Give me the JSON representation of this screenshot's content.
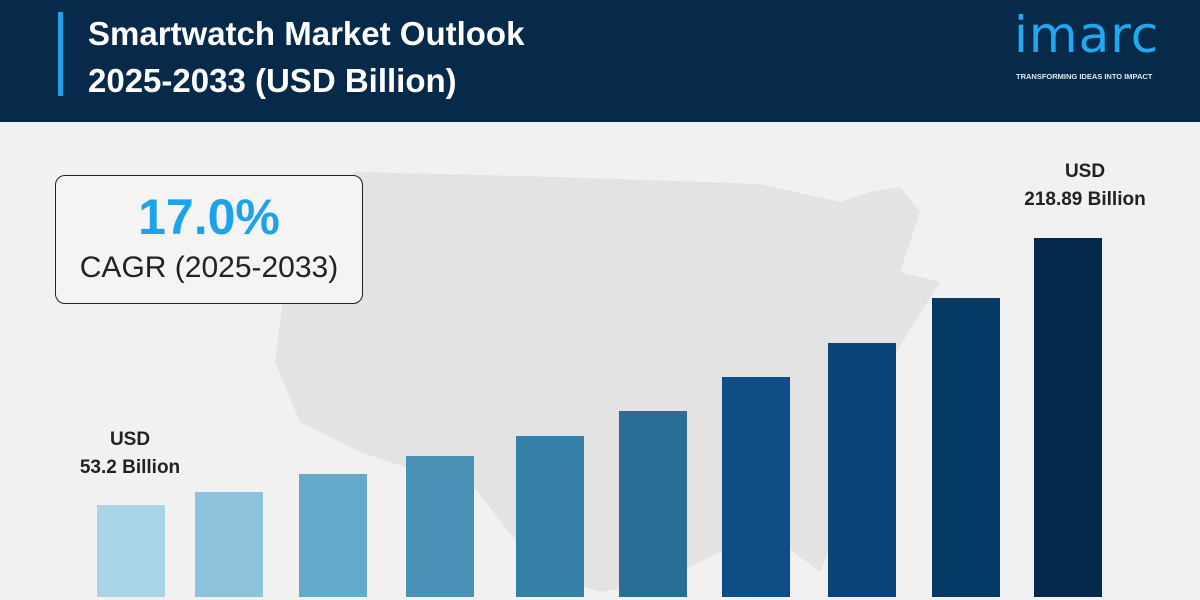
{
  "header": {
    "title_line1": "Smartwatch Market Outlook",
    "title_line2": "2025-2033 (USD Billion)"
  },
  "logo": {
    "word": "imarc",
    "tagline": "TRANSFORMING IDEAS INTO IMPACT"
  },
  "cagr": {
    "value": "17.0%",
    "label": "CAGR (2025-2033)"
  },
  "chart_data": {
    "type": "bar",
    "title": "Smartwatch Market Outlook 2025-2033 (USD Billion)",
    "values": [
      53.2,
      61.3,
      72.4,
      83.6,
      96.0,
      111.5,
      132.6,
      153.7,
      181.7,
      218.89
    ],
    "labeled_points": [
      {
        "index": 0,
        "line1": "USD",
        "line2": "53.2 Billion"
      },
      {
        "index": 9,
        "line1": "USD",
        "line2": "218.89 Billion"
      }
    ],
    "colors": [
      "#a8d4e6",
      "#8cc2db",
      "#64a9c9",
      "#4a91b5",
      "#3480a6",
      "#2a6e96",
      "#0e4d85",
      "#0a4478",
      "#063a66",
      "#04294a"
    ],
    "grid": false,
    "axes_visible": false
  }
}
